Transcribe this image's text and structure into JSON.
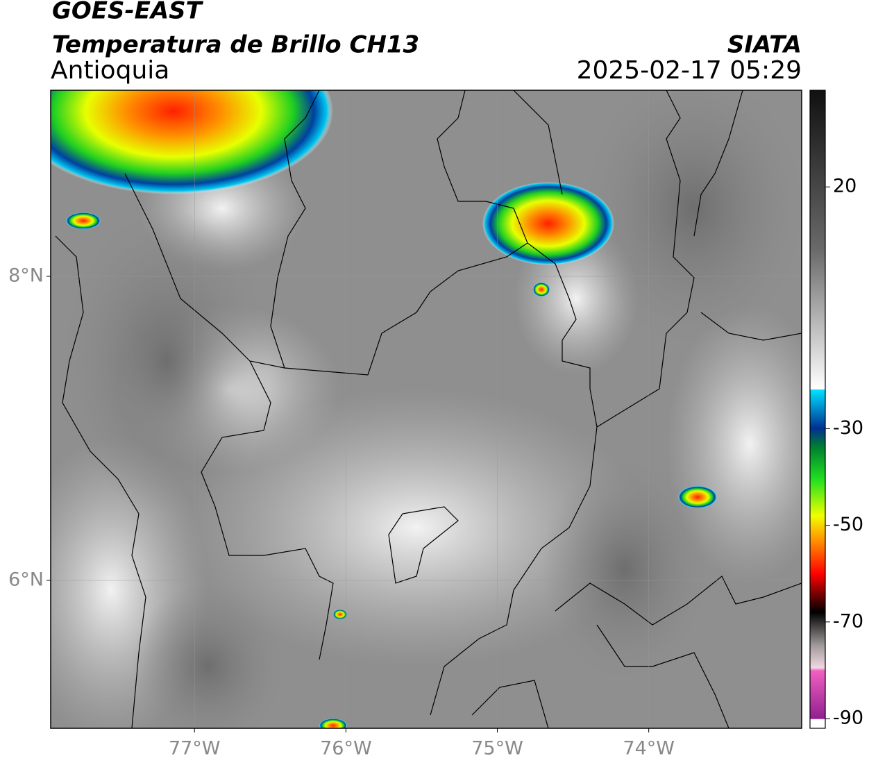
{
  "header": {
    "title": "GOES-EAST",
    "subtitle": "Temperatura de Brillo CH13",
    "region": "Antioquia",
    "source": "SIATA",
    "datetime": "2025-02-17 05:29"
  },
  "map": {
    "lonlim": [
      -77.95,
      -72.99
    ],
    "latlim": [
      5.027,
      9.224
    ],
    "lonticks": [
      {
        "value": -77,
        "label": "77°W"
      },
      {
        "value": -76,
        "label": "76°W"
      },
      {
        "value": -75,
        "label": "75°W"
      },
      {
        "value": -74,
        "label": "74°W"
      }
    ],
    "latticks": [
      {
        "value": 8,
        "label": "8°N"
      },
      {
        "value": 6,
        "label": "6°N"
      }
    ],
    "grid": true
  },
  "colorbar": {
    "lim": [
      -92,
      40
    ],
    "ticks": [
      20,
      -30,
      -50,
      -70,
      -90
    ]
  }
}
